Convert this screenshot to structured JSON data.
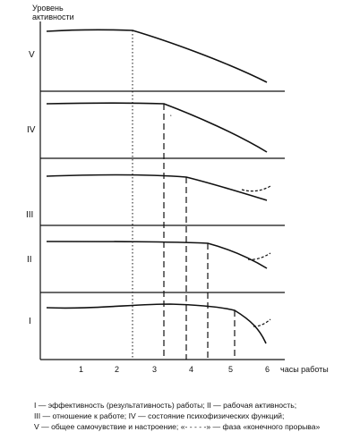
{
  "y_axis_title": [
    "Уровень",
    "активности"
  ],
  "x_axis_title": "часы работы",
  "x_ticks": [
    "1",
    "2",
    "3",
    "4",
    "5",
    "6"
  ],
  "panel_labels": [
    "V",
    "IV",
    "III",
    "II",
    "I"
  ],
  "caption": [
    "I — эффективность (результативность) работы; II — рабочая активность;",
    "III — отношение к работе; IV — состояние психофизических функций;",
    "V — общее самочувствие и настроение; «- - - - -» — фаза «конечного прорыва»"
  ],
  "chart_data": {
    "type": "line",
    "xlabel": "часы работы",
    "ylabel": "Уровень активности",
    "xlim": [
      0,
      6.5
    ],
    "panels": [
      {
        "label": "V",
        "decline_start_hour": 2.5,
        "marker": "dotted",
        "final_spurt": false
      },
      {
        "label": "IV",
        "decline_start_hour": 3.2,
        "marker": "dashed",
        "final_spurt": false
      },
      {
        "label": "III",
        "decline_start_hour": 3.9,
        "marker": "dashed",
        "final_spurt": true
      },
      {
        "label": "II",
        "decline_start_hour": 4.4,
        "marker": "dashed",
        "final_spurt": true
      },
      {
        "label": "I",
        "decline_start_hour": 5.1,
        "marker": "dashed",
        "final_spurt": true
      }
    ]
  }
}
